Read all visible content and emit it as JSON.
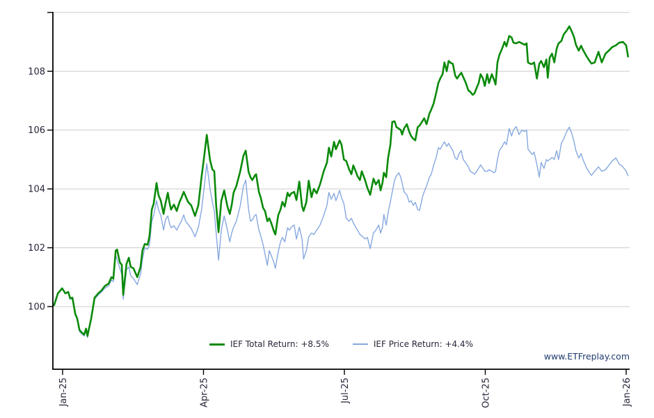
{
  "watermark": {
    "text": "www.ETFreplay.com",
    "color": "#1f3a6e"
  },
  "colors": {
    "background": "#ffffff",
    "gridline": "#cbcbcb",
    "axis": "#000000",
    "tick_label": "#26263a",
    "total_return_green": "#0a8a0a",
    "price_return_blue": "#86a8e0"
  },
  "legend": {
    "items": [
      {
        "label": "IEF Total Return: +8.5%",
        "color": "#0a8a0a"
      },
      {
        "label": "IEF Price Return: +4.4%",
        "color": "#86a8e0"
      }
    ]
  },
  "chart_data": {
    "type": "line",
    "title": "",
    "xlabel": "",
    "ylabel": "",
    "grid": true,
    "legend_position": "bottom-center",
    "x_axis": {
      "unit": "months since Jan-2025 tick",
      "tick_values": [
        0,
        3,
        6,
        9,
        12
      ],
      "tick_labels": [
        "Jan-25",
        "Apr-25",
        "Jul-25",
        "Oct-25",
        "Jan-26"
      ],
      "range": [
        -0.207,
        12.074
      ]
    },
    "y_axis": {
      "tick_values": [
        100,
        102,
        104,
        106,
        108
      ],
      "tick_labels": [
        "100",
        "102",
        "104",
        "106",
        "108"
      ],
      "gridline_values": [
        100,
        102,
        104,
        106,
        108,
        110
      ],
      "range": [
        97.87,
        110.02
      ]
    },
    "x": [
      -0.18,
      -0.1,
      -0.01,
      0.06,
      0.12,
      0.16,
      0.21,
      0.27,
      0.31,
      0.36,
      0.42,
      0.46,
      0.5,
      0.53,
      0.61,
      0.68,
      0.76,
      0.83,
      0.9,
      0.98,
      1.04,
      1.08,
      1.13,
      1.16,
      1.22,
      1.26,
      1.29,
      1.36,
      1.41,
      1.45,
      1.51,
      1.59,
      1.66,
      1.7,
      1.75,
      1.81,
      1.85,
      1.9,
      1.94,
      2.0,
      2.04,
      2.09,
      2.15,
      2.19,
      2.24,
      2.28,
      2.31,
      2.37,
      2.43,
      2.49,
      2.53,
      2.58,
      2.62,
      2.67,
      2.74,
      2.82,
      2.89,
      2.96,
      3.01,
      3.07,
      3.14,
      3.19,
      3.23,
      3.27,
      3.32,
      3.38,
      3.44,
      3.51,
      3.56,
      3.6,
      3.64,
      3.7,
      3.78,
      3.85,
      3.9,
      3.96,
      4.0,
      4.04,
      4.09,
      4.12,
      4.18,
      4.22,
      4.27,
      4.31,
      4.36,
      4.4,
      4.44,
      4.5,
      4.53,
      4.59,
      4.64,
      4.68,
      4.73,
      4.79,
      4.83,
      4.87,
      4.93,
      4.98,
      5.04,
      5.1,
      5.13,
      5.19,
      5.24,
      5.3,
      5.35,
      5.41,
      5.48,
      5.56,
      5.63,
      5.67,
      5.72,
      5.78,
      5.82,
      5.9,
      5.94,
      5.99,
      6.04,
      6.1,
      6.15,
      6.19,
      6.24,
      6.28,
      6.33,
      6.37,
      6.44,
      6.49,
      6.55,
      6.62,
      6.67,
      6.73,
      6.77,
      6.81,
      6.84,
      6.89,
      6.93,
      6.98,
      7.02,
      7.07,
      7.11,
      7.16,
      7.2,
      7.23,
      7.27,
      7.33,
      7.38,
      7.42,
      7.47,
      7.51,
      7.56,
      7.6,
      7.66,
      7.7,
      7.75,
      7.81,
      7.85,
      7.9,
      7.96,
      8.0,
      8.04,
      8.09,
      8.13,
      8.18,
      8.22,
      8.27,
      8.31,
      8.36,
      8.4,
      8.44,
      8.49,
      8.53,
      8.58,
      8.64,
      8.68,
      8.73,
      8.77,
      8.82,
      8.86,
      8.9,
      8.95,
      8.99,
      9.04,
      9.08,
      9.14,
      9.19,
      9.22,
      9.26,
      9.3,
      9.36,
      9.41,
      9.45,
      9.51,
      9.56,
      9.6,
      9.66,
      9.72,
      9.78,
      9.84,
      9.88,
      9.91,
      9.96,
      10.0,
      10.04,
      10.1,
      10.15,
      10.19,
      10.25,
      10.3,
      10.33,
      10.37,
      10.42,
      10.47,
      10.52,
      10.56,
      10.62,
      10.67,
      10.74,
      10.79,
      10.84,
      10.89,
      10.93,
      10.99,
      11.04,
      11.08,
      11.16,
      11.22,
      11.26,
      11.33,
      11.41,
      11.48,
      11.56,
      11.63,
      11.7,
      11.78,
      11.85,
      11.93,
      12.0,
      12.04
    ],
    "series": [
      {
        "name": "IEF Total Return: +8.5%",
        "color": "#0a8a0a",
        "stroke_width": 2.6,
        "values": [
          100.05,
          100.45,
          100.62,
          100.45,
          100.5,
          100.28,
          100.3,
          99.75,
          99.6,
          99.2,
          99.1,
          99.05,
          99.25,
          99.0,
          99.6,
          100.3,
          100.45,
          100.55,
          100.7,
          100.78,
          101.0,
          100.95,
          101.9,
          101.94,
          101.5,
          101.42,
          100.4,
          101.45,
          101.66,
          101.35,
          101.3,
          101.0,
          101.35,
          101.9,
          102.13,
          102.1,
          102.4,
          103.3,
          103.5,
          104.2,
          103.8,
          103.6,
          103.15,
          103.5,
          103.87,
          103.5,
          103.3,
          103.47,
          103.25,
          103.56,
          103.7,
          103.9,
          103.75,
          103.56,
          103.44,
          103.08,
          103.45,
          104.43,
          105.05,
          105.84,
          104.98,
          104.66,
          104.6,
          103.44,
          102.53,
          103.6,
          103.95,
          103.4,
          103.15,
          103.45,
          103.87,
          104.1,
          104.58,
          105.13,
          105.3,
          104.58,
          104.4,
          104.3,
          104.45,
          104.5,
          103.9,
          103.7,
          103.35,
          103.25,
          102.9,
          103.0,
          102.85,
          102.56,
          102.45,
          103.1,
          103.3,
          103.56,
          103.4,
          103.87,
          103.75,
          103.85,
          103.9,
          103.62,
          104.25,
          103.4,
          103.25,
          103.55,
          104.28,
          103.72,
          104.0,
          103.85,
          104.15,
          104.6,
          104.9,
          105.4,
          105.1,
          105.6,
          105.35,
          105.65,
          105.5,
          105.0,
          104.95,
          104.67,
          104.5,
          104.8,
          104.6,
          104.43,
          104.3,
          104.6,
          104.3,
          104.03,
          103.8,
          104.35,
          104.15,
          104.3,
          103.95,
          104.2,
          104.55,
          104.4,
          105.05,
          105.5,
          106.28,
          106.3,
          106.1,
          106.05,
          106.0,
          105.85,
          106.05,
          106.2,
          105.95,
          105.8,
          105.7,
          105.65,
          106.1,
          106.15,
          106.3,
          106.4,
          106.2,
          106.56,
          106.7,
          106.9,
          107.3,
          107.6,
          107.75,
          107.9,
          108.3,
          108.0,
          108.35,
          108.28,
          108.25,
          107.85,
          107.75,
          107.85,
          107.95,
          107.8,
          107.63,
          107.35,
          107.3,
          107.2,
          107.25,
          107.45,
          107.6,
          107.9,
          107.75,
          107.5,
          107.9,
          107.6,
          107.9,
          107.7,
          107.55,
          108.3,
          108.55,
          108.78,
          109.0,
          108.85,
          109.2,
          109.15,
          108.97,
          108.95,
          109.0,
          108.95,
          108.9,
          108.95,
          108.3,
          108.25,
          108.25,
          108.3,
          107.75,
          108.25,
          108.35,
          108.14,
          108.4,
          107.78,
          108.46,
          108.6,
          108.3,
          108.77,
          108.95,
          109.03,
          109.25,
          109.4,
          109.53,
          109.36,
          109.16,
          108.9,
          108.7,
          108.87,
          108.73,
          108.5,
          108.35,
          108.26,
          108.3,
          108.66,
          108.3,
          108.6,
          108.7,
          108.82,
          108.88,
          108.97,
          109.0,
          108.88,
          108.5
        ]
      },
      {
        "name": "IEF Price Return: +4.4%",
        "color": "#86a8e0",
        "stroke_width": 1.4,
        "values": [
          100.05,
          100.43,
          100.6,
          100.43,
          100.48,
          100.25,
          100.27,
          99.72,
          99.57,
          99.15,
          99.05,
          99.0,
          99.2,
          98.95,
          99.55,
          100.25,
          100.4,
          100.5,
          100.63,
          100.7,
          100.9,
          100.85,
          101.75,
          101.6,
          101.3,
          101.1,
          100.25,
          101.25,
          101.35,
          101.05,
          100.95,
          100.75,
          101.1,
          101.6,
          102.0,
          101.95,
          102.1,
          102.9,
          103.1,
          103.6,
          103.3,
          103.1,
          102.6,
          102.95,
          103.08,
          102.8,
          102.68,
          102.75,
          102.6,
          102.8,
          102.9,
          103.12,
          102.9,
          102.8,
          102.65,
          102.37,
          102.7,
          103.3,
          104.0,
          104.86,
          104.0,
          103.55,
          103.25,
          102.5,
          101.58,
          102.6,
          103.08,
          102.6,
          102.2,
          102.5,
          102.7,
          102.9,
          103.4,
          104.1,
          104.3,
          103.3,
          102.9,
          102.95,
          103.1,
          103.13,
          102.6,
          102.4,
          102.1,
          101.78,
          101.4,
          101.9,
          101.75,
          101.5,
          101.3,
          101.85,
          102.2,
          102.35,
          102.2,
          102.68,
          102.6,
          102.7,
          102.77,
          102.3,
          102.7,
          102.3,
          101.62,
          101.9,
          102.37,
          102.5,
          102.45,
          102.6,
          102.77,
          103.1,
          103.45,
          103.88,
          103.65,
          103.85,
          103.6,
          103.95,
          103.7,
          103.5,
          103.0,
          102.9,
          103.0,
          102.85,
          102.7,
          102.6,
          102.45,
          102.4,
          102.3,
          102.35,
          101.97,
          102.5,
          102.6,
          102.77,
          102.5,
          102.7,
          103.13,
          102.77,
          103.2,
          103.56,
          103.9,
          104.3,
          104.45,
          104.55,
          104.4,
          104.2,
          103.9,
          103.8,
          103.55,
          103.6,
          103.44,
          103.55,
          103.3,
          103.27,
          103.7,
          103.9,
          104.1,
          104.4,
          104.5,
          104.8,
          105.1,
          105.4,
          105.35,
          105.5,
          105.6,
          105.45,
          105.55,
          105.4,
          105.3,
          105.05,
          105.0,
          105.2,
          105.3,
          105.0,
          104.9,
          104.75,
          104.6,
          104.55,
          104.5,
          104.6,
          104.7,
          104.82,
          104.7,
          104.6,
          104.6,
          104.65,
          104.6,
          104.55,
          104.6,
          105.0,
          105.3,
          105.45,
          105.6,
          105.5,
          106.05,
          105.8,
          106.0,
          106.12,
          105.85,
          106.0,
          105.95,
          106.0,
          105.35,
          105.25,
          105.17,
          105.25,
          104.83,
          104.4,
          104.9,
          104.7,
          105.0,
          104.95,
          105.0,
          105.07,
          105.0,
          105.3,
          105.0,
          105.55,
          105.7,
          105.97,
          106.1,
          105.9,
          105.6,
          105.3,
          105.05,
          105.2,
          105.0,
          104.7,
          104.55,
          104.46,
          104.6,
          104.75,
          104.6,
          104.65,
          104.8,
          104.95,
          105.05,
          104.85,
          104.75,
          104.6,
          104.45
        ]
      }
    ]
  }
}
